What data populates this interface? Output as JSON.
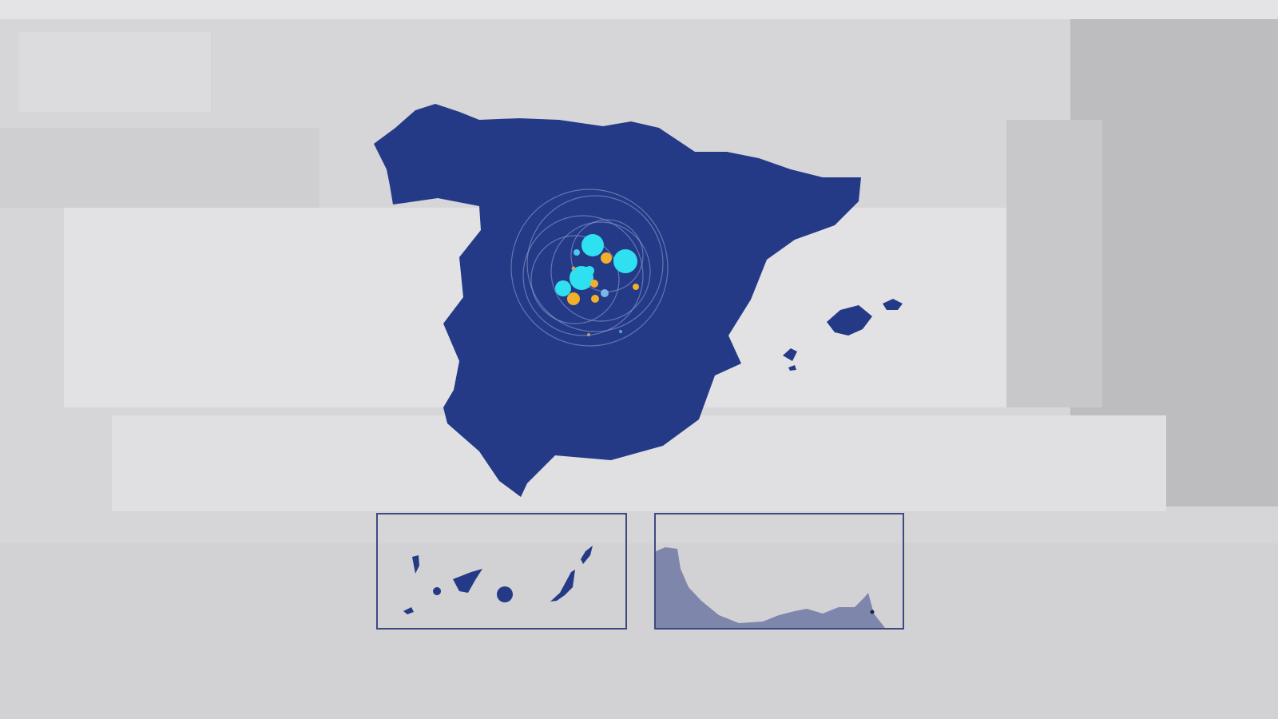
{
  "map": {
    "region": "Spain",
    "insets": [
      "canary-islands",
      "ceuta-melilla-coast"
    ],
    "colors": {
      "land": "#243a86",
      "background": "#d6d6d8",
      "bubble_primary": "#2fe0f0",
      "bubble_secondary": "#f0b02a",
      "inset_border": "#3c4a80",
      "inset_land_secondary": "#7e86ab"
    }
  }
}
